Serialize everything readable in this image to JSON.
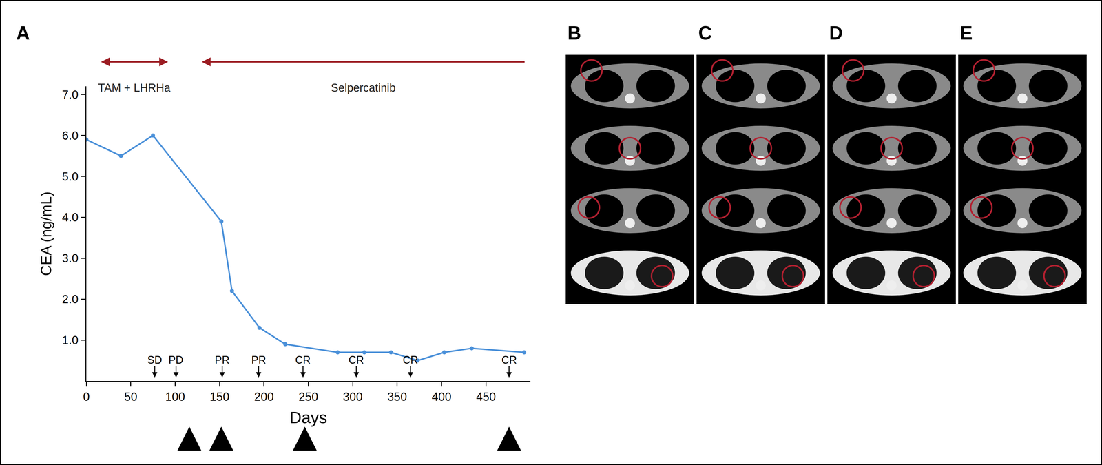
{
  "panel_label": "A",
  "image_panels": [
    "B",
    "C",
    "D",
    "E"
  ],
  "chart_data": {
    "type": "line",
    "xlabel": "Days",
    "ylabel": "CEA (ng/mL)",
    "x": [
      0,
      39,
      75,
      152,
      164,
      195,
      224,
      283,
      313,
      343,
      373,
      403,
      434,
      493
    ],
    "values": [
      5.9,
      5.5,
      6.0,
      3.9,
      2.2,
      1.3,
      0.9,
      0.7,
      0.7,
      0.7,
      0.5,
      0.7,
      0.8,
      0.7
    ],
    "color": "#4a90d9",
    "marker": "circle",
    "line_style": "solid",
    "grid": false,
    "xlim": [
      0,
      500
    ],
    "ylim": [
      0,
      7.2
    ],
    "xticks": [
      0,
      50,
      100,
      150,
      200,
      250,
      300,
      350,
      400,
      450
    ],
    "yticks": [
      {
        "value": 1,
        "label": "1.0"
      },
      {
        "value": 2,
        "label": "2.0"
      },
      {
        "value": 3,
        "label": "3.0"
      },
      {
        "value": 4,
        "label": "4.0"
      },
      {
        "value": 5,
        "label": "5.0"
      },
      {
        "value": 6,
        "label": "6.0"
      },
      {
        "value": 7,
        "label": "7.0"
      }
    ],
    "treatments": [
      {
        "label": "TAM + LHRHa",
        "start": 16,
        "end": 92,
        "arrow": "both",
        "color": "#9b1c22"
      },
      {
        "label": "Selpercatinib",
        "start": 130,
        "end": 494,
        "arrow": "left",
        "color": "#9b1c22"
      }
    ],
    "response_assessments": [
      {
        "day": 77,
        "label": "SD"
      },
      {
        "day": 101,
        "label": "PD"
      },
      {
        "day": 153,
        "label": "PR"
      },
      {
        "day": 194,
        "label": "PR"
      },
      {
        "day": 244,
        "label": "CR"
      },
      {
        "day": 304,
        "label": "CR"
      },
      {
        "day": 365,
        "label": "CR"
      },
      {
        "day": 476,
        "label": "CR"
      }
    ],
    "scan_timepoints": [
      {
        "day": 116,
        "label": "B"
      },
      {
        "day": 152,
        "label": "C"
      },
      {
        "day": 246,
        "label": "D"
      },
      {
        "day": 476,
        "label": "E"
      }
    ]
  }
}
